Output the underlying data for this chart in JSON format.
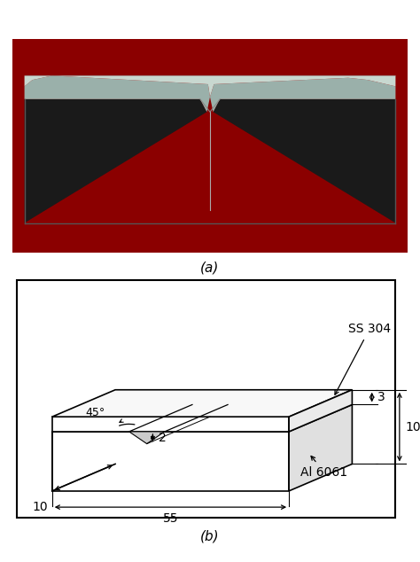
{
  "fig_width": 4.74,
  "fig_height": 6.34,
  "dpi": 100,
  "bg_color": "#ffffff",
  "label_a": "(a)",
  "label_b": "(b)",
  "photo_bg": "#8B0000",
  "diagram_border": "#000000",
  "diagram_bg": "#ffffff",
  "annotation_ss304": "SS 304",
  "annotation_al6061": "Al 6061",
  "dim_55": "55",
  "dim_10_width": "10",
  "dim_10_height": "10",
  "dim_3": "3",
  "dim_2": "2",
  "dim_45": "45°"
}
